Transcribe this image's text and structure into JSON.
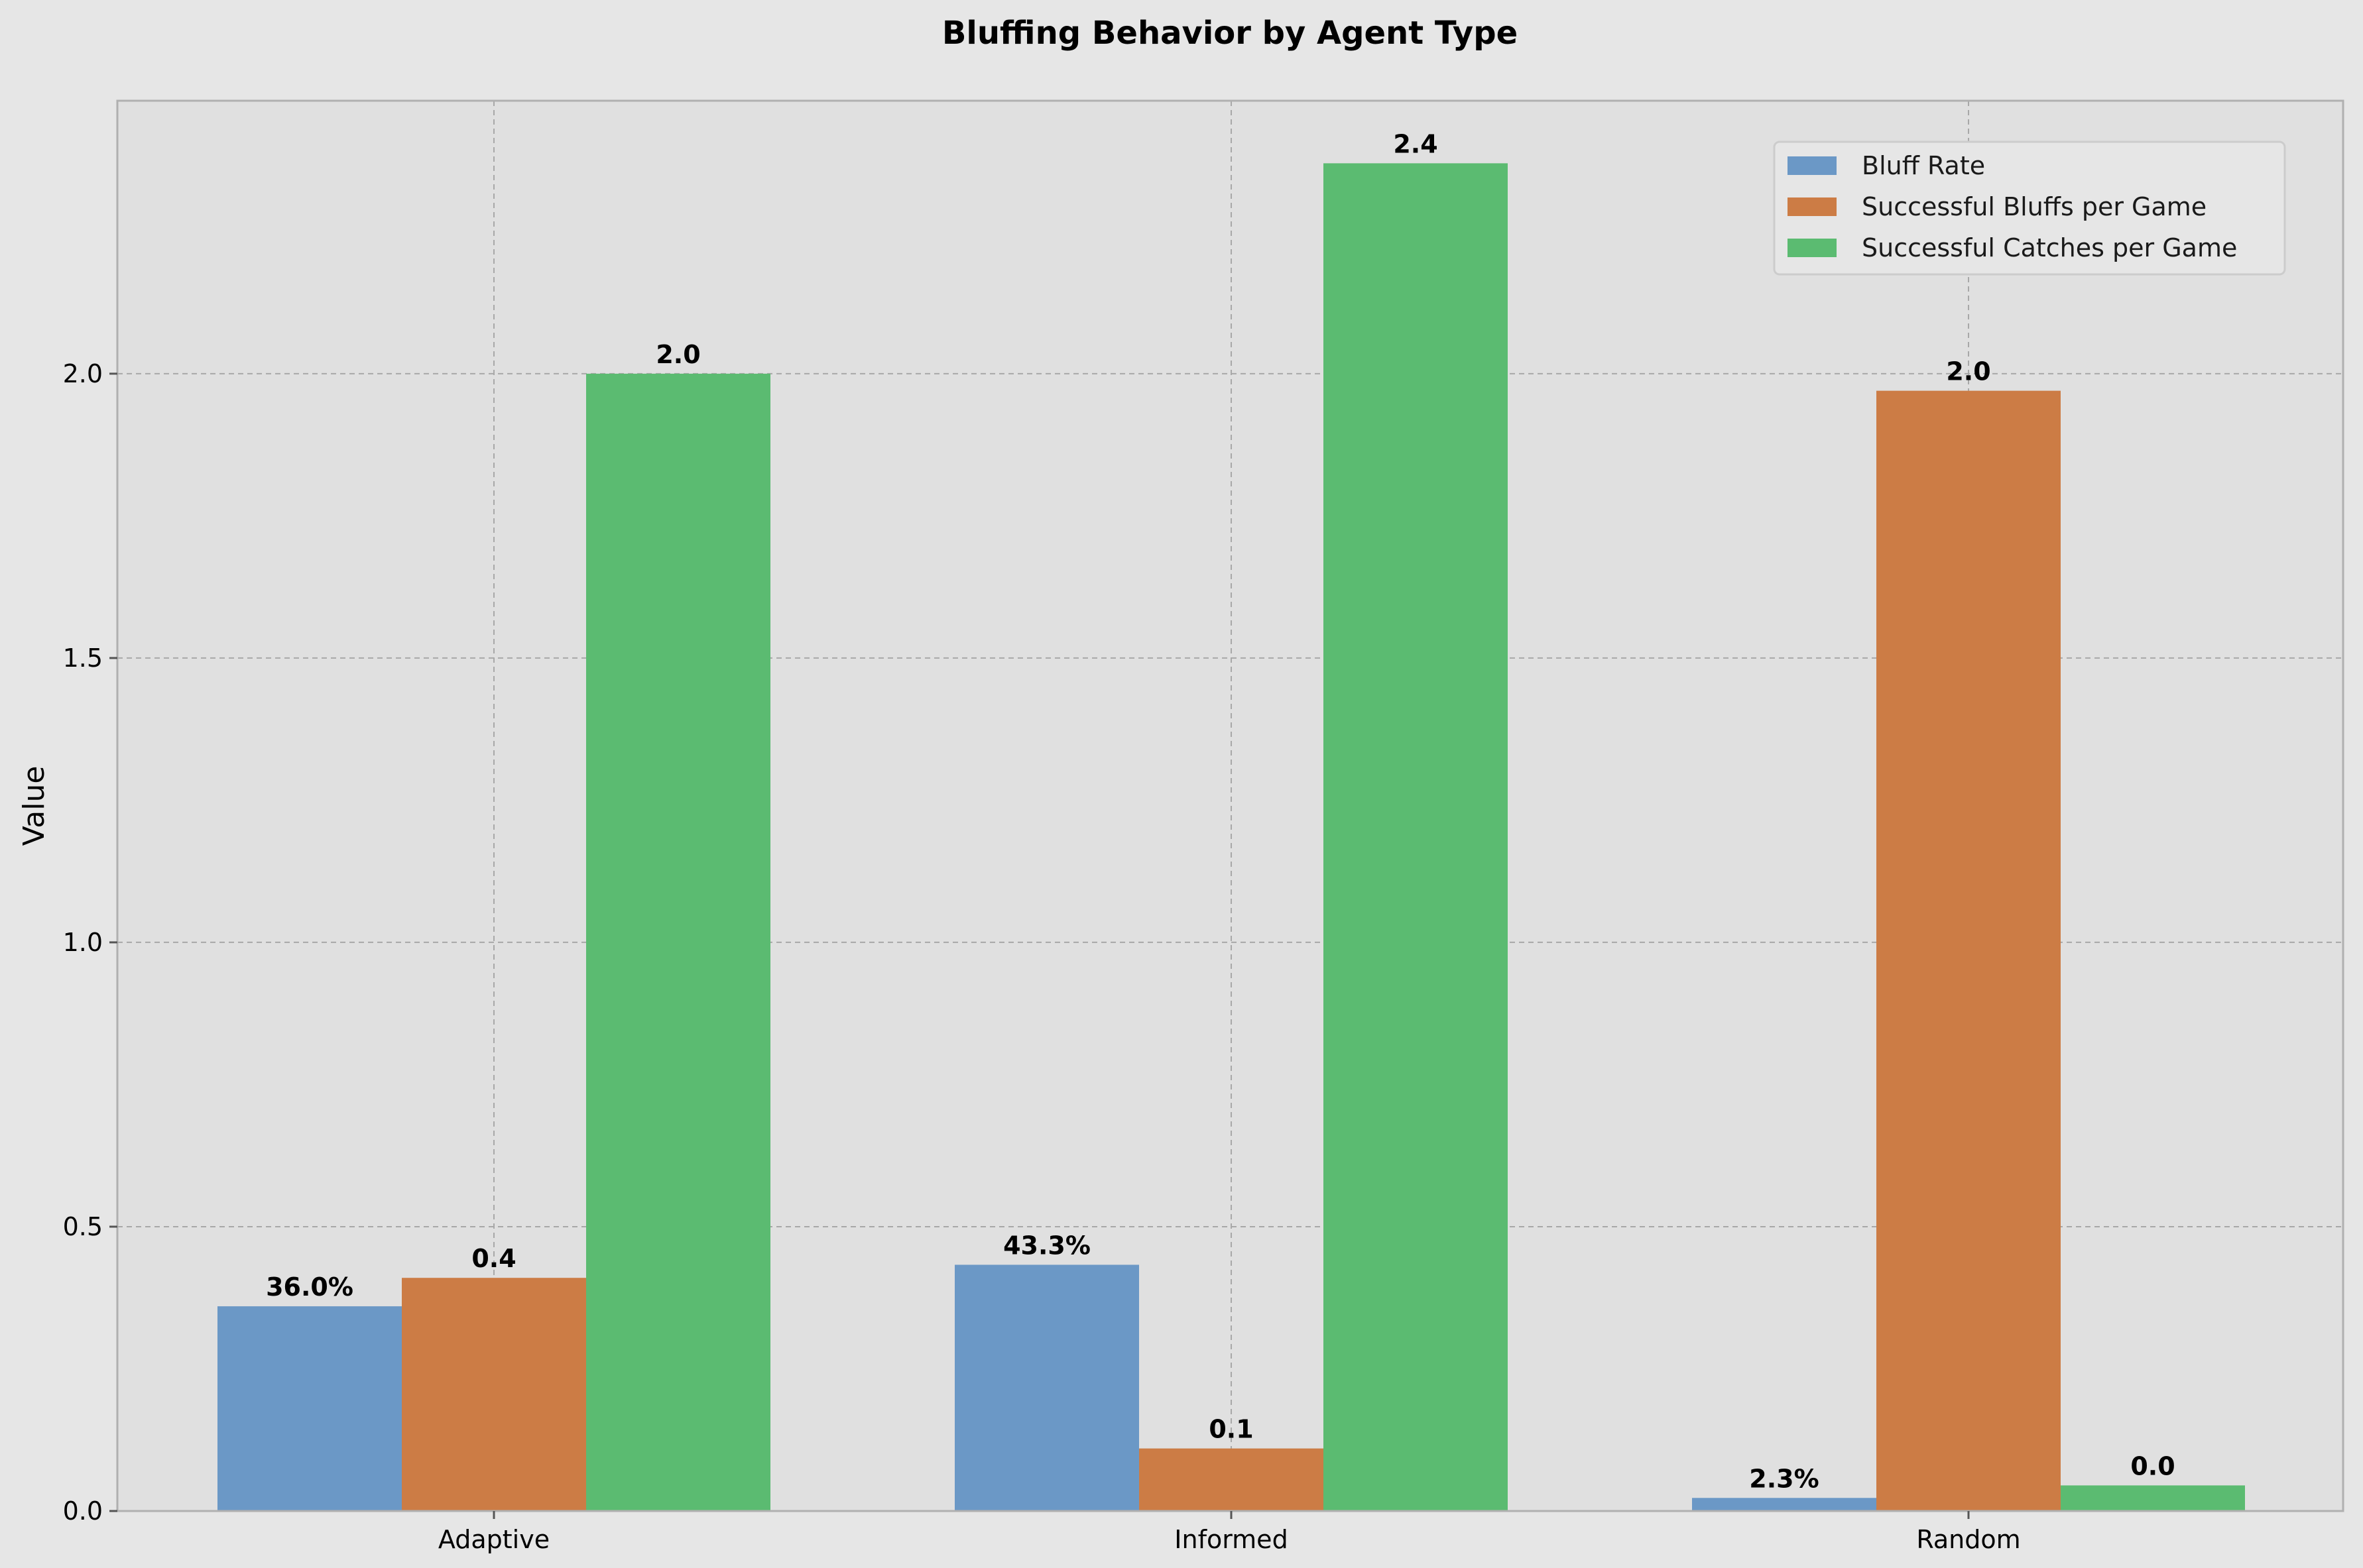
{
  "chart_data": {
    "type": "bar",
    "title": "Bluffing Behavior by Agent Type",
    "xlabel": "",
    "ylabel": "Value",
    "categories": [
      "Adaptive",
      "Informed",
      "Random"
    ],
    "ylim": [
      0,
      2.48
    ],
    "yticks": [
      0.0,
      0.5,
      1.0,
      1.5,
      2.0
    ],
    "ytick_labels": [
      "0.0",
      "0.5",
      "1.0",
      "1.5",
      "2.0"
    ],
    "grid": true,
    "legend_position": "top-right",
    "series": [
      {
        "name": "Bluff Rate",
        "color": "#6b98c6",
        "values": [
          0.36,
          0.433,
          0.023
        ],
        "labels": [
          "36.0%",
          "43.3%",
          "2.3%"
        ]
      },
      {
        "name": "Successful Bluffs per Game",
        "color": "#cc7c45",
        "values": [
          0.41,
          0.11,
          1.97
        ],
        "labels": [
          "0.4",
          "0.1",
          "2.0"
        ]
      },
      {
        "name": "Successful Catches per Game",
        "color": "#5bbb71",
        "values": [
          2.0,
          2.37,
          0.045
        ],
        "labels": [
          "2.0",
          "2.4",
          "0.0"
        ]
      }
    ]
  }
}
